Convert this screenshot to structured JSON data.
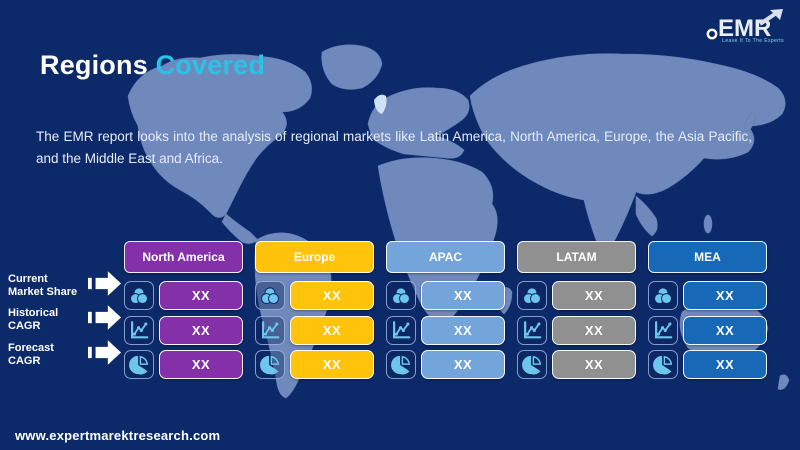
{
  "header": {
    "title_primary": "Regions",
    "title_accent": "Covered",
    "description": "The EMR report looks into the analysis of regional markets like Latin America, North America, Europe, the Asia Pacific, and the Middle East and Africa."
  },
  "logo": {
    "text": "EMR",
    "tagline": "Leave It To The Experts"
  },
  "footer": {
    "url": "www.expertmarektresearch.com"
  },
  "colors": {
    "background": "#0c2a6a",
    "map_land": "#6f89bd",
    "map_highlight": "#cfe2f4",
    "accent_cyan": "#2ac3e8",
    "icon_blue": "#6ec6ec"
  },
  "table": {
    "rows": [
      {
        "label": "Current Market Share",
        "icon": "market-share-icon"
      },
      {
        "label": "Historical CAGR",
        "icon": "line-chart-icon"
      },
      {
        "label": "Forecast CAGR",
        "icon": "pie-chart-icon"
      }
    ],
    "columns": [
      {
        "name": "North America",
        "color": "#8430a8",
        "values": [
          "XX",
          "XX",
          "XX"
        ]
      },
      {
        "name": "Europe",
        "color": "#ffc30b",
        "values": [
          "XX",
          "XX",
          "XX"
        ]
      },
      {
        "name": "APAC",
        "color": "#73a4da",
        "values": [
          "XX",
          "XX",
          "XX"
        ]
      },
      {
        "name": "LATAM",
        "color": "#909090",
        "values": [
          "XX",
          "XX",
          "XX"
        ]
      },
      {
        "name": "MEA",
        "color": "#1769b8",
        "values": [
          "XX",
          "XX",
          "XX"
        ]
      }
    ]
  }
}
